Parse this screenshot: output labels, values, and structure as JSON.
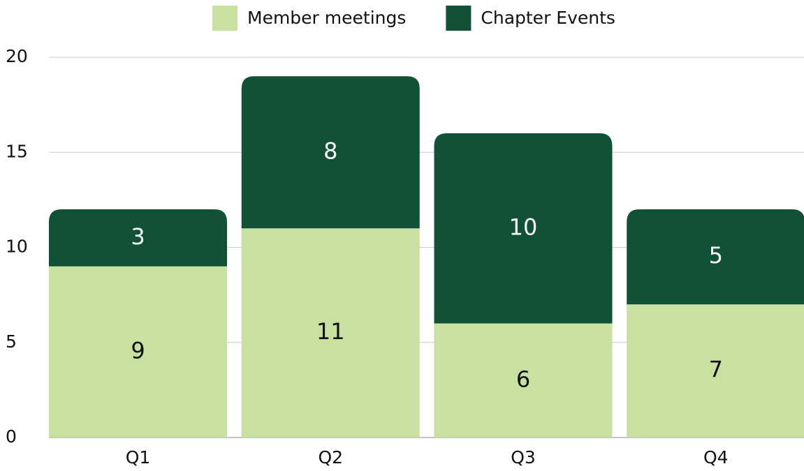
{
  "chart_data": {
    "type": "stacked_bar",
    "categories": [
      "Q1",
      "Q2",
      "Q3",
      "Q4"
    ],
    "series": [
      {
        "name": "Member meetings",
        "color": "#c9e1a0",
        "values": [
          9,
          11,
          6,
          7
        ]
      },
      {
        "name": "Chapter Events",
        "color": "#115135",
        "values": [
          3,
          8,
          10,
          5
        ]
      }
    ],
    "ylim": [
      0,
      20
    ],
    "yticks": [
      0,
      5,
      10,
      15,
      20
    ],
    "grid": true,
    "legend": "top"
  }
}
